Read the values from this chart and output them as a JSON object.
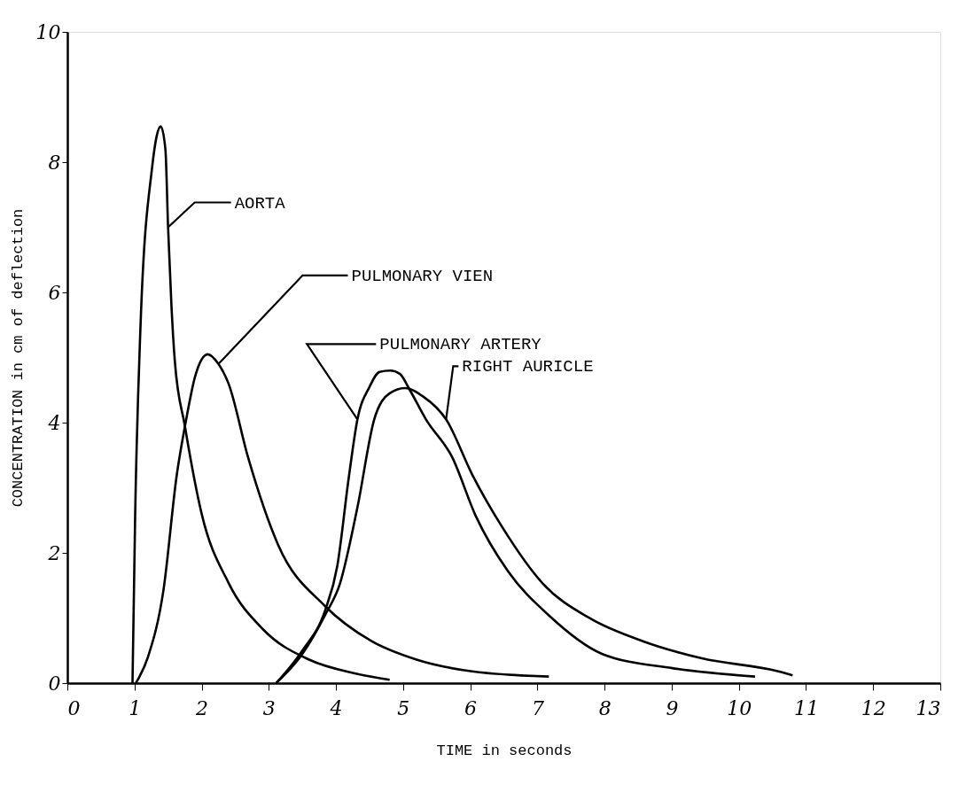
{
  "chart_data": {
    "type": "line",
    "xlabel": "TIME in seconds",
    "ylabel": "CONCENTRATION in cm of deflection",
    "xlim": [
      0,
      13
    ],
    "xticks": [
      0,
      1,
      2,
      3,
      4,
      5,
      6,
      7,
      8,
      9,
      10,
      11,
      12,
      13
    ],
    "ylim": [
      0,
      10
    ],
    "yticks": [
      0,
      2,
      4,
      6,
      8,
      10
    ],
    "grid": false,
    "marker": "none",
    "line_style": "solid",
    "series": [
      {
        "name": "AORTA",
        "color": "#000000",
        "x": [
          0.97,
          1.01,
          1.09,
          1.26,
          1.33,
          1.39,
          1.46,
          1.5,
          1.55,
          1.6,
          1.75,
          2.0,
          2.4,
          2.92,
          3.6,
          4.28,
          4.8
        ],
        "values": [
          0,
          2.6,
          5.5,
          7.9,
          8.4,
          8.55,
          8.2,
          7.0,
          5.8,
          4.95,
          3.95,
          2.6,
          1.54,
          0.82,
          0.36,
          0.15,
          0.05
        ]
      },
      {
        "name": "PULMONARY VIEN",
        "color": "#000000",
        "x": [
          1.02,
          1.2,
          1.43,
          1.63,
          1.77,
          1.9,
          2.09,
          2.25,
          2.4,
          2.69,
          3.14,
          3.84,
          4.52,
          5.2,
          6.03,
          7.17
        ],
        "values": [
          0,
          0.4,
          1.42,
          3.2,
          4.05,
          4.7,
          5.05,
          4.9,
          4.6,
          3.47,
          2.12,
          1.18,
          0.65,
          0.36,
          0.18,
          0.1
        ]
      },
      {
        "name": "PULMONARY ARTERY",
        "color": "#000000",
        "x": [
          3.11,
          3.5,
          3.84,
          4.02,
          4.19,
          4.32,
          4.5,
          4.65,
          4.81,
          4.95,
          5.1,
          5.34,
          5.73,
          6.08,
          6.56,
          7.17,
          7.96,
          9.01,
          10.24
        ],
        "values": [
          0,
          0.5,
          1.12,
          1.8,
          3.15,
          4.05,
          4.55,
          4.78,
          4.8,
          4.75,
          4.5,
          4.05,
          3.47,
          2.57,
          1.72,
          1.04,
          0.45,
          0.23,
          0.1
        ]
      },
      {
        "name": "RIGHT AURICLE",
        "color": "#000000",
        "x": [
          3.11,
          3.5,
          3.84,
          4.06,
          4.32,
          4.57,
          4.8,
          5.03,
          5.3,
          5.64,
          6.03,
          6.48,
          7.08,
          7.79,
          8.58,
          9.45,
          10.59,
          10.8
        ],
        "values": [
          0,
          0.45,
          1.05,
          1.53,
          2.7,
          4.05,
          4.45,
          4.53,
          4.4,
          4.05,
          3.2,
          2.39,
          1.53,
          0.99,
          0.64,
          0.38,
          0.18,
          0.12
        ]
      }
    ]
  }
}
